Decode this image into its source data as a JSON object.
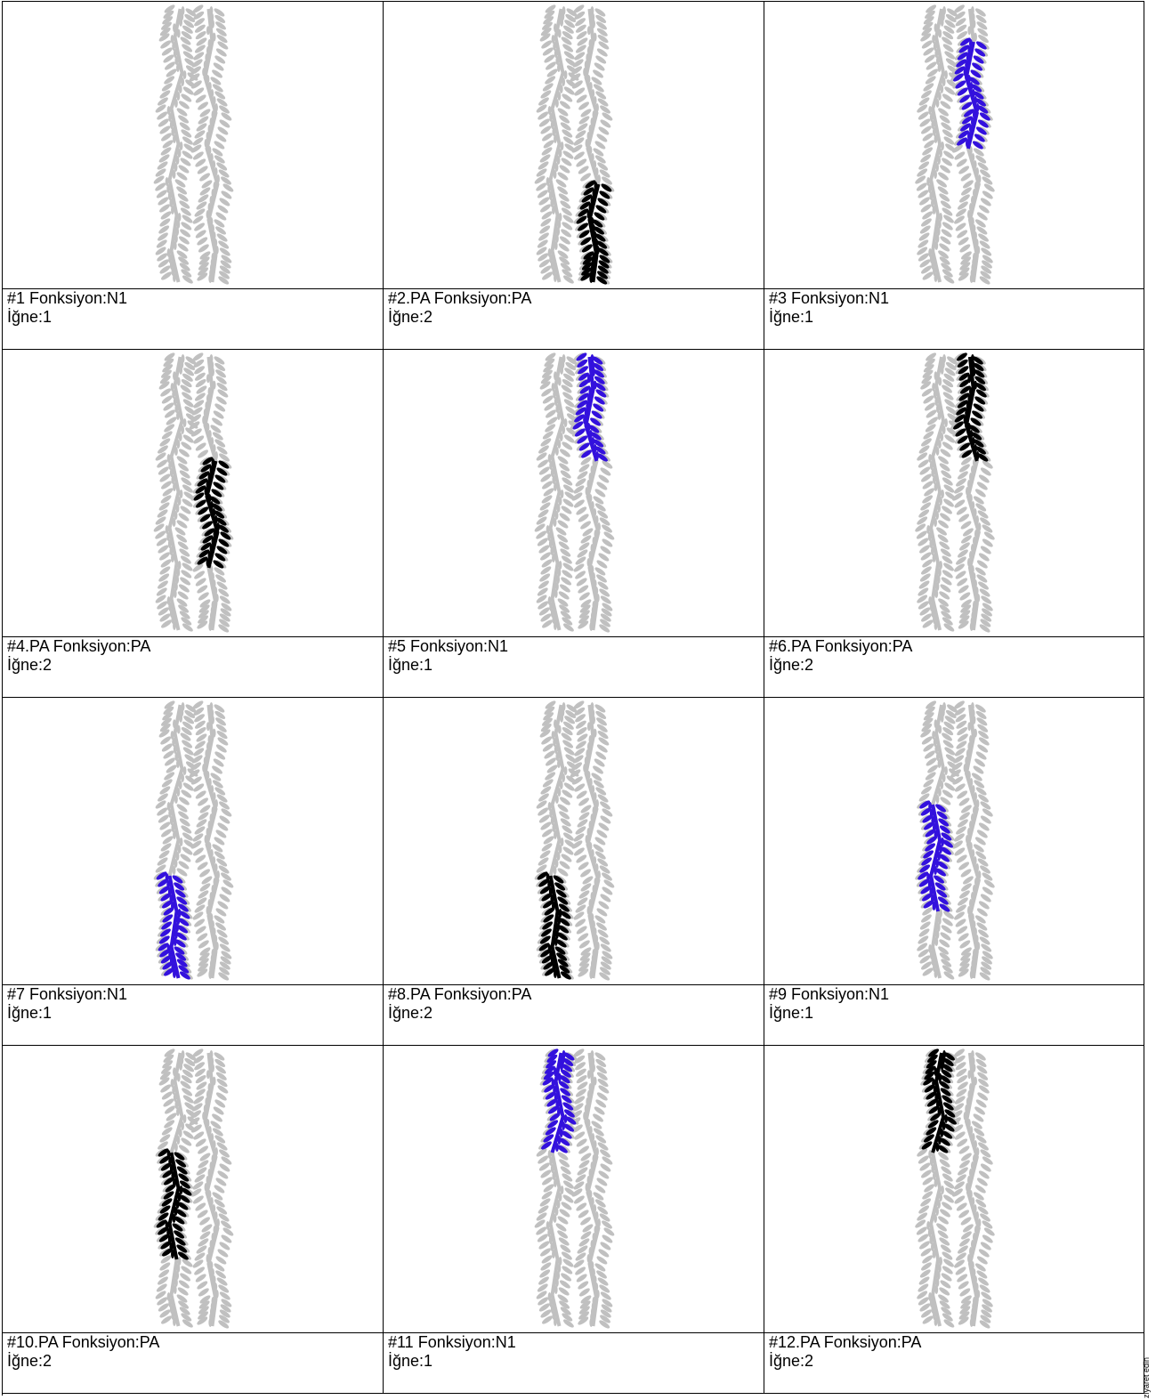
{
  "colors": {
    "base": "#c0c0c0",
    "active_n1": "#3311dd",
    "active_pa": "#000000",
    "border": "#000000"
  },
  "cells": [
    {
      "title": "#1 Fonksiyon:N1",
      "needle": "İğne:1",
      "highlight": "none",
      "segment": ""
    },
    {
      "title": "#2.PA Fonksiyon:PA",
      "needle": "İğne:2",
      "highlight": "black",
      "segment": "right-bottom"
    },
    {
      "title": "#3 Fonksiyon:N1",
      "needle": "İğne:1",
      "highlight": "blue",
      "segment": "right-upper-mid"
    },
    {
      "title": "#4.PA Fonksiyon:PA",
      "needle": "İğne:2",
      "highlight": "black",
      "segment": "right-mid"
    },
    {
      "title": "#5 Fonksiyon:N1",
      "needle": "İğne:1",
      "highlight": "blue",
      "segment": "right-top"
    },
    {
      "title": "#6.PA Fonksiyon:PA",
      "needle": "İğne:2",
      "highlight": "black",
      "segment": "right-top"
    },
    {
      "title": "#7 Fonksiyon:N1",
      "needle": "İğne:1",
      "highlight": "blue",
      "segment": "left-bottom"
    },
    {
      "title": "#8.PA Fonksiyon:PA",
      "needle": "İğne:2",
      "highlight": "black",
      "segment": "left-bottom"
    },
    {
      "title": "#9 Fonksiyon:N1",
      "needle": "İğne:1",
      "highlight": "blue",
      "segment": "left-mid"
    },
    {
      "title": "#10.PA Fonksiyon:PA",
      "needle": "İğne:2",
      "highlight": "black",
      "segment": "left-mid"
    },
    {
      "title": "#11 Fonksiyon:N1",
      "needle": "İğne:1",
      "highlight": "blue",
      "segment": "left-top"
    },
    {
      "title": "#12.PA Fonksiyon:PA",
      "needle": "İğne:2",
      "highlight": "black",
      "segment": "left-top"
    }
  ],
  "side_note": "ziyaret edin"
}
